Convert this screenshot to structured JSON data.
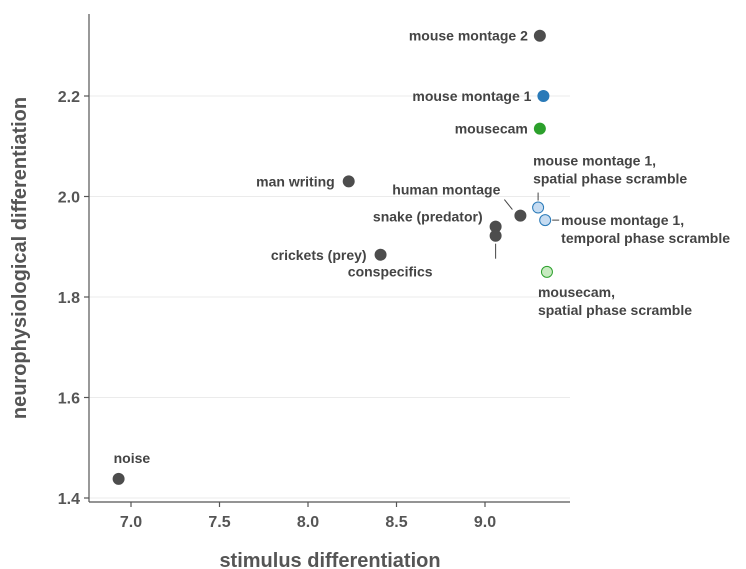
{
  "chart_data": {
    "type": "scatter",
    "title": "",
    "xlabel": "stimulus differentiation",
    "ylabel": "neurophysiological differentiation",
    "xlim": [
      6.8,
      9.5
    ],
    "ylim": [
      1.4,
      2.34
    ],
    "xticks": [
      7.0,
      7.5,
      8.0,
      8.5,
      9.0
    ],
    "yticks": [
      1.4,
      1.6,
      1.8,
      2.0,
      2.2
    ],
    "grid": "horizontal",
    "legend": "none",
    "colors": {
      "natural": "#4d4d4d",
      "mouse_montage_1": "#2a7ab8",
      "mousecam": "#2ca02c",
      "montage_scramble_fill": "#c6dcf2",
      "montage_scramble_edge": "#2a7ab8",
      "mousecam_scramble_fill": "#c7eac0",
      "mousecam_scramble_edge": "#2ca02c"
    },
    "points": [
      {
        "label": "mouse montage 2",
        "x": 9.31,
        "y": 2.32,
        "style": "natural"
      },
      {
        "label": "mouse montage 1",
        "x": 9.33,
        "y": 2.2,
        "style": "mouse_montage_1"
      },
      {
        "label": "mousecam",
        "x": 9.31,
        "y": 2.135,
        "style": "mousecam"
      },
      {
        "label": "man writing",
        "x": 8.23,
        "y": 2.03,
        "style": "natural"
      },
      {
        "label": "human montage",
        "x": 9.2,
        "y": 1.962,
        "style": "natural"
      },
      {
        "label": "snake (predator)",
        "x": 9.06,
        "y": 1.94,
        "style": "natural"
      },
      {
        "label": "conspecifics",
        "x": 9.06,
        "y": 1.922,
        "style": "natural"
      },
      {
        "label": "crickets (prey)",
        "x": 8.41,
        "y": 1.884,
        "style": "natural"
      },
      {
        "label": "mouse montage 1, spatial phase scramble",
        "label_lines": [
          "mouse montage 1,",
          "spatial phase scramble"
        ],
        "x": 9.3,
        "y": 1.978,
        "style": "montage_scramble"
      },
      {
        "label": "mouse montage 1, temporal phase scramble",
        "label_lines": [
          "mouse montage 1,",
          "temporal phase scramble"
        ],
        "x": 9.34,
        "y": 1.953,
        "style": "montage_scramble"
      },
      {
        "label": "mousecam, spatial phase scramble",
        "label_lines": [
          "mousecam,",
          "spatial phase scramble"
        ],
        "x": 9.35,
        "y": 1.85,
        "style": "mousecam_scramble"
      },
      {
        "label": "noise",
        "x": 6.93,
        "y": 1.438,
        "style": "natural"
      }
    ]
  }
}
